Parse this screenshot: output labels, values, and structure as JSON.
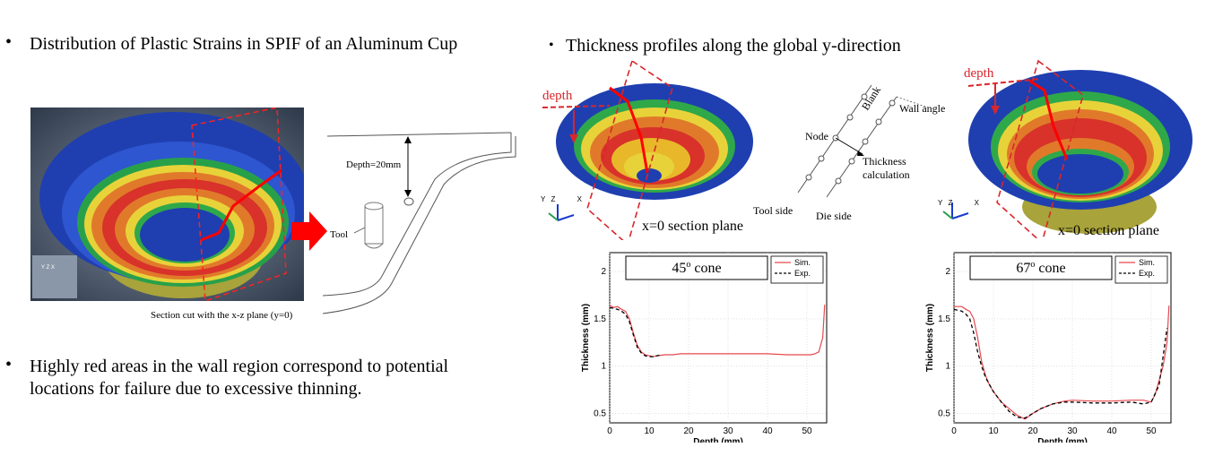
{
  "left": {
    "bullet1": "Distribution of Plastic Strains in SPIF of an Aluminum Cup",
    "bullet2_line1": "Highly red areas in the wall region correspond to potential",
    "bullet2_line2": "locations for failure due to excessive thinning.",
    "caption": "Section cut with the x-z plane (y=0)",
    "schematic": {
      "depth_label": "Depth=20mm",
      "tool_label": "Tool"
    },
    "triad": {
      "y": "Y",
      "z": "Z",
      "x": "X"
    }
  },
  "right": {
    "bullet": "Thickness profiles along the global y-direction",
    "depth_label": "depth",
    "section_plane_label": "x=0 section plane",
    "diagram": {
      "node": "Node",
      "blank": "Blank",
      "wall_angle": "Wall angle",
      "thickness_calc_1": "Thickness",
      "thickness_calc_2": "calculation",
      "tool_side": "Tool side",
      "die_side": "Die side"
    },
    "triad": {
      "y": "Y",
      "z": "Z",
      "x": "X"
    }
  },
  "colors": {
    "sim": "#e8484f",
    "exp": "#000000",
    "annotation_red": "#d9262b",
    "cup_blue": "#1f3fb0",
    "arrow_red": "#ff0000"
  },
  "chart_data": [
    {
      "type": "line",
      "title": "45o cone",
      "title_main": "45",
      "title_sup": "o",
      "title_rest": " cone",
      "xlabel": "Depth (mm)",
      "ylabel": "Thickness (mm)",
      "xlim": [
        0,
        55
      ],
      "ylim": [
        0.4,
        2.2
      ],
      "xticks": [
        0,
        10,
        20,
        30,
        40,
        50
      ],
      "yticks": [
        0.5,
        1,
        1.5,
        2
      ],
      "ytick_labels": [
        "0.5",
        "1",
        "1.5",
        "2"
      ],
      "legend": "top-right",
      "series": [
        {
          "name": "Sim.",
          "style": "solid",
          "color": "#e8484f",
          "x": [
            0,
            1,
            2,
            3,
            4,
            5,
            6,
            7,
            8,
            9,
            10,
            11,
            12,
            14,
            16,
            18,
            20,
            25,
            30,
            35,
            40,
            45,
            48,
            50,
            51,
            52,
            53,
            54,
            54.5
          ],
          "y": [
            1.64,
            1.62,
            1.63,
            1.6,
            1.58,
            1.5,
            1.35,
            1.22,
            1.15,
            1.12,
            1.11,
            1.1,
            1.11,
            1.12,
            1.12,
            1.13,
            1.13,
            1.13,
            1.13,
            1.13,
            1.13,
            1.12,
            1.12,
            1.12,
            1.12,
            1.13,
            1.15,
            1.3,
            1.65
          ]
        },
        {
          "name": "Exp.",
          "style": "dashed",
          "color": "#000000",
          "x": [
            0,
            2,
            3,
            4,
            5,
            6,
            7,
            8,
            9,
            10,
            11,
            12,
            13
          ],
          "y": [
            1.62,
            1.6,
            1.58,
            1.55,
            1.47,
            1.33,
            1.2,
            1.14,
            1.11,
            1.1,
            1.1,
            1.11,
            1.12
          ]
        }
      ]
    },
    {
      "type": "line",
      "title": "67o cone",
      "title_main": "67",
      "title_sup": "o",
      "title_rest": " cone",
      "xlabel": "Depth (mm)",
      "ylabel": "Thickness (mm)",
      "xlim": [
        0,
        55
      ],
      "ylim": [
        0.4,
        2.2
      ],
      "xticks": [
        0,
        10,
        20,
        30,
        40,
        50
      ],
      "yticks": [
        0.5,
        1,
        1.5,
        2
      ],
      "ytick_labels": [
        "0.5",
        "1",
        "1.5",
        "2"
      ],
      "legend": "top-right",
      "series": [
        {
          "name": "Sim.",
          "style": "solid",
          "color": "#e8484f",
          "x": [
            0,
            2,
            3,
            4,
            5,
            6,
            7,
            8,
            9,
            10,
            12,
            14,
            16,
            18,
            20,
            22,
            25,
            28,
            30,
            35,
            40,
            45,
            48,
            50,
            51,
            52,
            53,
            54,
            54.5
          ],
          "y": [
            1.63,
            1.63,
            1.6,
            1.58,
            1.5,
            1.3,
            1.05,
            0.9,
            0.8,
            0.73,
            0.62,
            0.55,
            0.48,
            0.44,
            0.5,
            0.55,
            0.6,
            0.63,
            0.64,
            0.63,
            0.63,
            0.64,
            0.64,
            0.62,
            0.7,
            0.85,
            1.0,
            1.25,
            1.64
          ]
        },
        {
          "name": "Exp.",
          "style": "dashed",
          "color": "#000000",
          "x": [
            0,
            2,
            3,
            4,
            5,
            6,
            7,
            8,
            10,
            12,
            14,
            16,
            18,
            20,
            22,
            25,
            28,
            30,
            35,
            40,
            45,
            48,
            50,
            52,
            53,
            54
          ],
          "y": [
            1.6,
            1.58,
            1.55,
            1.5,
            1.35,
            1.15,
            1.0,
            0.88,
            0.73,
            0.62,
            0.52,
            0.46,
            0.45,
            0.5,
            0.55,
            0.6,
            0.62,
            0.62,
            0.61,
            0.61,
            0.62,
            0.6,
            0.62,
            0.8,
            1.1,
            1.4
          ]
        }
      ]
    }
  ]
}
